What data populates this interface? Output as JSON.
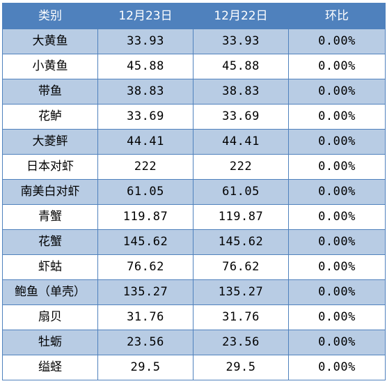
{
  "header": {
    "category": "类别",
    "date1": "12月23日",
    "date2": "12月22日",
    "change": "环比"
  },
  "rows": [
    {
      "name": "大黄鱼",
      "v1": "33.93",
      "v2": "33.93",
      "pct": "0.00%"
    },
    {
      "name": "小黄鱼",
      "v1": "45.88",
      "v2": "45.88",
      "pct": "0.00%"
    },
    {
      "name": "带鱼",
      "v1": "38.83",
      "v2": "38.83",
      "pct": "0.00%"
    },
    {
      "name": "花鲈",
      "v1": "33.69",
      "v2": "33.69",
      "pct": "0.00%"
    },
    {
      "name": "大菱鲆",
      "v1": "44.41",
      "v2": "44.41",
      "pct": "0.00%"
    },
    {
      "name": "日本对虾",
      "v1": "222",
      "v2": "222",
      "pct": "0.00%"
    },
    {
      "name": "南美白对虾",
      "v1": "61.05",
      "v2": "61.05",
      "pct": "0.00%"
    },
    {
      "name": "青蟹",
      "v1": "119.87",
      "v2": "119.87",
      "pct": "0.00%"
    },
    {
      "name": "花蟹",
      "v1": "145.62",
      "v2": "145.62",
      "pct": "0.00%"
    },
    {
      "name": "虾蛄",
      "v1": "76.62",
      "v2": "76.62",
      "pct": "0.00%"
    },
    {
      "name": "鲍鱼（单壳）",
      "v1": "135.27",
      "v2": "135.27",
      "pct": "0.00%"
    },
    {
      "name": "扇贝",
      "v1": "31.76",
      "v2": "31.76",
      "pct": "0.00%"
    },
    {
      "name": "牡蛎",
      "v1": "23.56",
      "v2": "23.56",
      "pct": "0.00%"
    },
    {
      "name": "缢蛏",
      "v1": "29.5",
      "v2": "29.5",
      "pct": "0.00%"
    }
  ]
}
